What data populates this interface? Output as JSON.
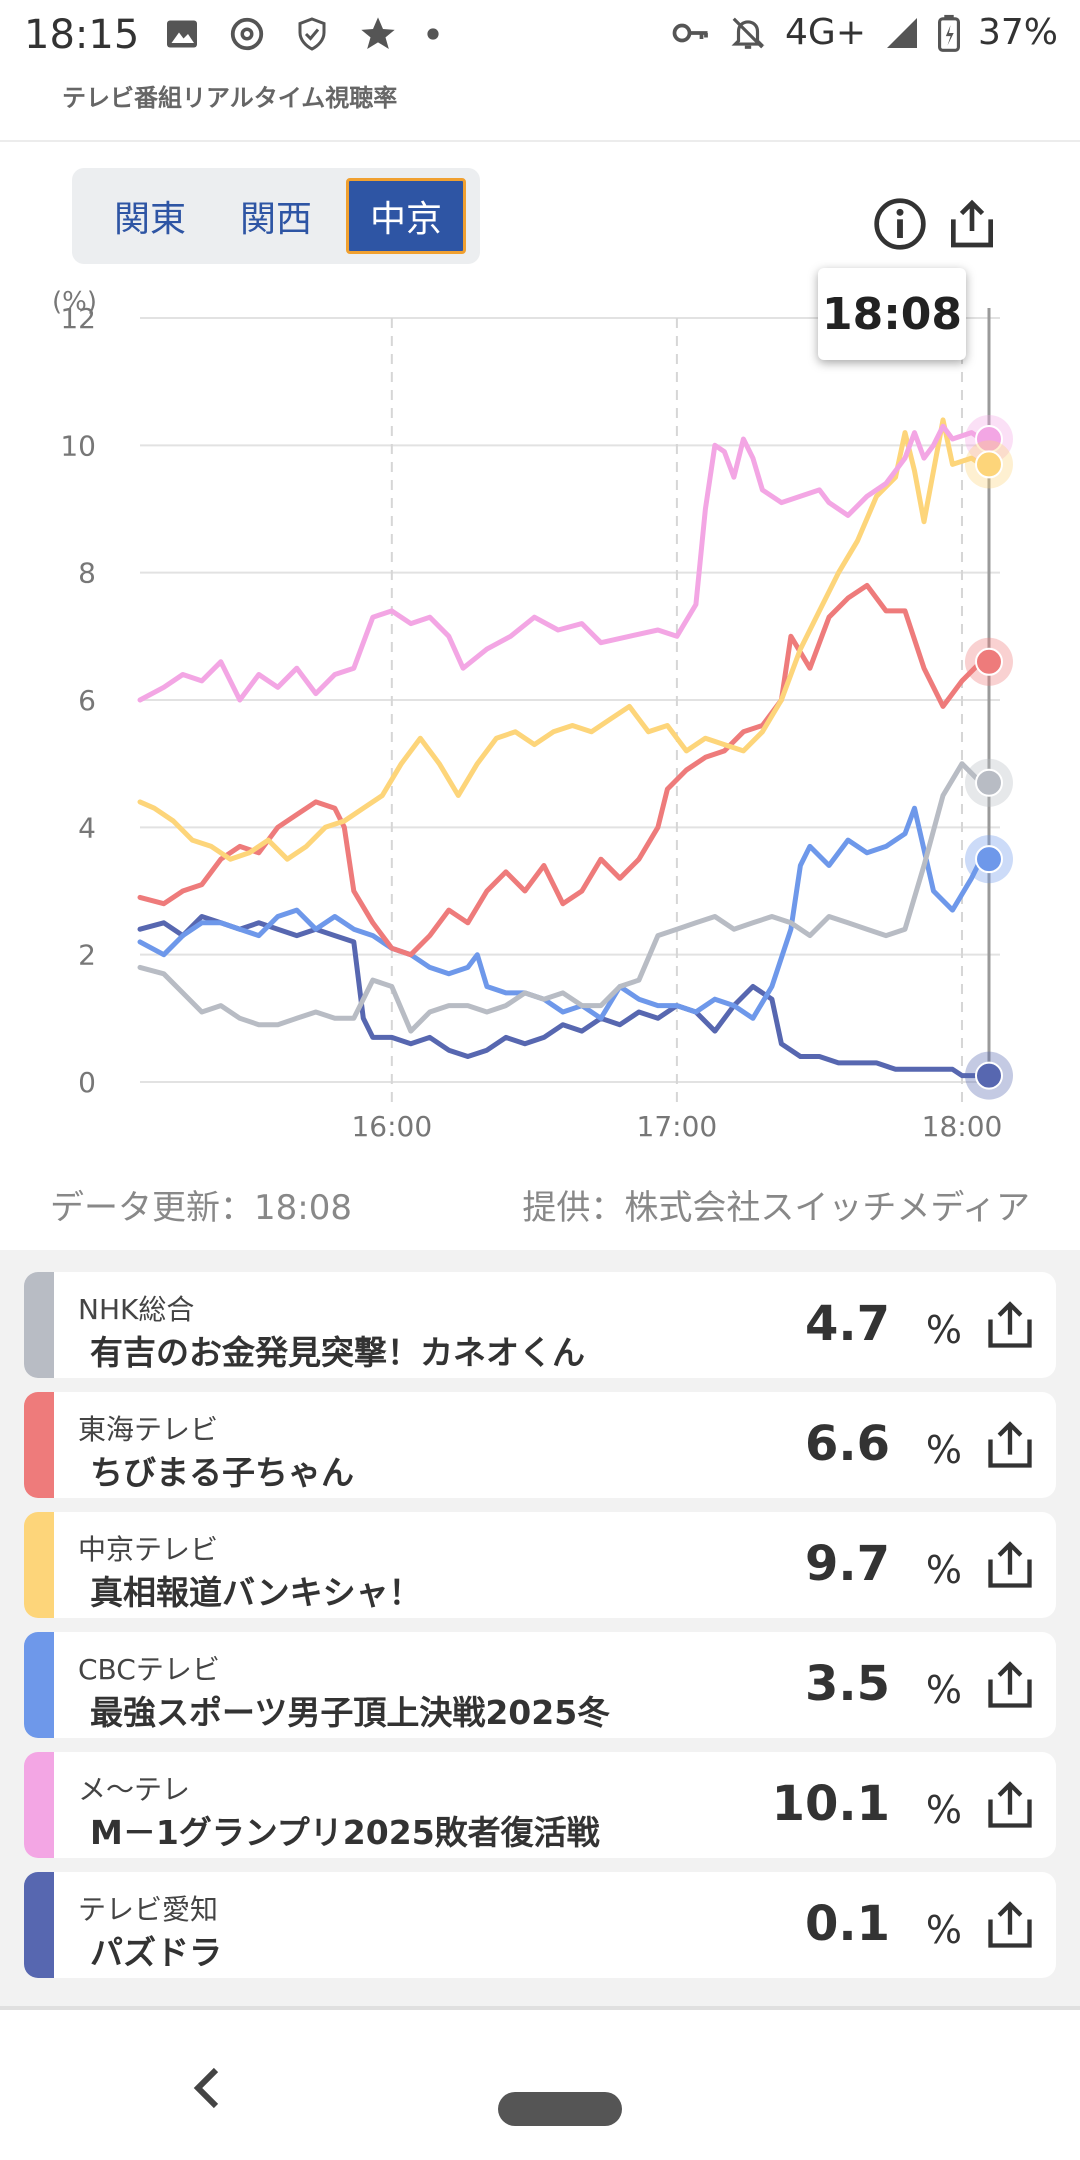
{
  "status_bar": {
    "time": "18:15",
    "network": "4G+",
    "battery": "37%",
    "left_icons": [
      "image-icon",
      "threads-icon",
      "shield-icon",
      "star-icon",
      "dot-icon"
    ],
    "right_icons": [
      "key-icon",
      "bell-off-icon",
      "signal-icon",
      "battery-icon"
    ]
  },
  "header": {
    "title": "テレビ番組リアルタイム視聴率"
  },
  "regions": {
    "tabs": [
      "関東",
      "関西",
      "中京"
    ],
    "active_index": 2
  },
  "toolbar": {
    "info_icon": "info-icon",
    "share_icon": "share-icon"
  },
  "tooltip": {
    "time": "18:08"
  },
  "meta": {
    "updated": "データ更新：18:08",
    "provider": "提供：株式会社スイッチメディア"
  },
  "chart_data": {
    "type": "line",
    "y_unit": "(%)",
    "ylim": [
      0,
      12
    ],
    "yticks": [
      "12",
      "10",
      "8",
      "6",
      "4",
      "2",
      "0"
    ],
    "xticks": [
      "16:00",
      "17:00",
      "18:00"
    ],
    "x_start_minutes": 907,
    "x_end_minutes": 1088,
    "grid": true,
    "series": [
      {
        "name": "メ〜テレ",
        "color": "#f3a6e4",
        "points": [
          [
            907,
            6.0
          ],
          [
            912,
            6.2
          ],
          [
            916,
            6.4
          ],
          [
            920,
            6.3
          ],
          [
            924,
            6.6
          ],
          [
            928,
            6.0
          ],
          [
            932,
            6.4
          ],
          [
            936,
            6.2
          ],
          [
            940,
            6.5
          ],
          [
            944,
            6.1
          ],
          [
            948,
            6.4
          ],
          [
            952,
            6.5
          ],
          [
            956,
            7.3
          ],
          [
            960,
            7.4
          ],
          [
            964,
            7.2
          ],
          [
            968,
            7.3
          ],
          [
            972,
            7.0
          ],
          [
            975,
            6.5
          ],
          [
            980,
            6.8
          ],
          [
            985,
            7.0
          ],
          [
            990,
            7.3
          ],
          [
            995,
            7.1
          ],
          [
            1000,
            7.2
          ],
          [
            1004,
            6.9
          ],
          [
            1010,
            7.0
          ],
          [
            1016,
            7.1
          ],
          [
            1020,
            7.0
          ],
          [
            1024,
            7.5
          ],
          [
            1026,
            9.0
          ],
          [
            1028,
            10.0
          ],
          [
            1030,
            9.9
          ],
          [
            1032,
            9.5
          ],
          [
            1034,
            10.1
          ],
          [
            1036,
            9.8
          ],
          [
            1038,
            9.3
          ],
          [
            1042,
            9.1
          ],
          [
            1046,
            9.2
          ],
          [
            1050,
            9.3
          ],
          [
            1052,
            9.1
          ],
          [
            1056,
            8.9
          ],
          [
            1060,
            9.2
          ],
          [
            1064,
            9.4
          ],
          [
            1068,
            9.8
          ],
          [
            1070,
            10.2
          ],
          [
            1072,
            9.8
          ],
          [
            1074,
            10.0
          ],
          [
            1076,
            10.3
          ],
          [
            1078,
            10.1
          ],
          [
            1082,
            10.2
          ],
          [
            1084,
            10.1
          ]
        ]
      },
      {
        "name": "中京テレビ",
        "color": "#fdd57a",
        "points": [
          [
            907,
            4.4
          ],
          [
            910,
            4.3
          ],
          [
            914,
            4.1
          ],
          [
            918,
            3.8
          ],
          [
            922,
            3.7
          ],
          [
            926,
            3.5
          ],
          [
            930,
            3.6
          ],
          [
            934,
            3.8
          ],
          [
            938,
            3.5
          ],
          [
            942,
            3.7
          ],
          [
            946,
            4.0
          ],
          [
            950,
            4.1
          ],
          [
            954,
            4.3
          ],
          [
            958,
            4.5
          ],
          [
            962,
            5.0
          ],
          [
            966,
            5.4
          ],
          [
            970,
            5.0
          ],
          [
            974,
            4.5
          ],
          [
            978,
            5.0
          ],
          [
            982,
            5.4
          ],
          [
            986,
            5.5
          ],
          [
            990,
            5.3
          ],
          [
            994,
            5.5
          ],
          [
            998,
            5.6
          ],
          [
            1002,
            5.5
          ],
          [
            1006,
            5.7
          ],
          [
            1010,
            5.9
          ],
          [
            1014,
            5.5
          ],
          [
            1018,
            5.6
          ],
          [
            1022,
            5.2
          ],
          [
            1026,
            5.4
          ],
          [
            1030,
            5.3
          ],
          [
            1034,
            5.2
          ],
          [
            1038,
            5.5
          ],
          [
            1042,
            6.0
          ],
          [
            1046,
            6.8
          ],
          [
            1050,
            7.4
          ],
          [
            1054,
            8.0
          ],
          [
            1058,
            8.5
          ],
          [
            1062,
            9.2
          ],
          [
            1066,
            9.5
          ],
          [
            1068,
            10.2
          ],
          [
            1070,
            9.6
          ],
          [
            1072,
            8.8
          ],
          [
            1074,
            9.6
          ],
          [
            1076,
            10.4
          ],
          [
            1078,
            9.7
          ],
          [
            1082,
            9.8
          ],
          [
            1084,
            9.7
          ]
        ]
      },
      {
        "name": "東海テレビ",
        "color": "#ee7b7b",
        "points": [
          [
            907,
            2.9
          ],
          [
            912,
            2.8
          ],
          [
            916,
            3.0
          ],
          [
            920,
            3.1
          ],
          [
            924,
            3.5
          ],
          [
            928,
            3.7
          ],
          [
            932,
            3.6
          ],
          [
            936,
            4.0
          ],
          [
            940,
            4.2
          ],
          [
            944,
            4.4
          ],
          [
            948,
            4.3
          ],
          [
            950,
            4.0
          ],
          [
            952,
            3.0
          ],
          [
            956,
            2.5
          ],
          [
            960,
            2.1
          ],
          [
            964,
            2.0
          ],
          [
            968,
            2.3
          ],
          [
            972,
            2.7
          ],
          [
            976,
            2.5
          ],
          [
            980,
            3.0
          ],
          [
            984,
            3.3
          ],
          [
            988,
            3.0
          ],
          [
            992,
            3.4
          ],
          [
            996,
            2.8
          ],
          [
            1000,
            3.0
          ],
          [
            1004,
            3.5
          ],
          [
            1008,
            3.2
          ],
          [
            1012,
            3.5
          ],
          [
            1016,
            4.0
          ],
          [
            1018,
            4.6
          ],
          [
            1022,
            4.9
          ],
          [
            1026,
            5.1
          ],
          [
            1030,
            5.2
          ],
          [
            1034,
            5.5
          ],
          [
            1038,
            5.6
          ],
          [
            1042,
            6.0
          ],
          [
            1044,
            7.0
          ],
          [
            1048,
            6.5
          ],
          [
            1052,
            7.3
          ],
          [
            1056,
            7.6
          ],
          [
            1060,
            7.8
          ],
          [
            1064,
            7.4
          ],
          [
            1068,
            7.4
          ],
          [
            1072,
            6.5
          ],
          [
            1076,
            5.9
          ],
          [
            1080,
            6.3
          ],
          [
            1084,
            6.6
          ]
        ]
      },
      {
        "name": "NHK総合",
        "color": "#b8bcc4",
        "points": [
          [
            907,
            1.8
          ],
          [
            912,
            1.7
          ],
          [
            916,
            1.4
          ],
          [
            920,
            1.1
          ],
          [
            924,
            1.2
          ],
          [
            928,
            1.0
          ],
          [
            932,
            0.9
          ],
          [
            936,
            0.9
          ],
          [
            940,
            1.0
          ],
          [
            944,
            1.1
          ],
          [
            948,
            1.0
          ],
          [
            952,
            1.0
          ],
          [
            956,
            1.6
          ],
          [
            960,
            1.5
          ],
          [
            964,
            0.8
          ],
          [
            968,
            1.1
          ],
          [
            972,
            1.2
          ],
          [
            976,
            1.2
          ],
          [
            980,
            1.1
          ],
          [
            984,
            1.2
          ],
          [
            988,
            1.4
          ],
          [
            992,
            1.3
          ],
          [
            996,
            1.4
          ],
          [
            1000,
            1.2
          ],
          [
            1004,
            1.2
          ],
          [
            1008,
            1.5
          ],
          [
            1012,
            1.6
          ],
          [
            1016,
            2.3
          ],
          [
            1020,
            2.4
          ],
          [
            1024,
            2.5
          ],
          [
            1028,
            2.6
          ],
          [
            1032,
            2.4
          ],
          [
            1036,
            2.5
          ],
          [
            1040,
            2.6
          ],
          [
            1044,
            2.5
          ],
          [
            1048,
            2.3
          ],
          [
            1052,
            2.6
          ],
          [
            1056,
            2.5
          ],
          [
            1060,
            2.4
          ],
          [
            1064,
            2.3
          ],
          [
            1068,
            2.4
          ],
          [
            1072,
            3.4
          ],
          [
            1076,
            4.5
          ],
          [
            1080,
            5.0
          ],
          [
            1084,
            4.7
          ]
        ]
      },
      {
        "name": "CBCテレビ",
        "color": "#6e98ea",
        "points": [
          [
            907,
            2.2
          ],
          [
            912,
            2.0
          ],
          [
            916,
            2.3
          ],
          [
            920,
            2.5
          ],
          [
            924,
            2.5
          ],
          [
            928,
            2.4
          ],
          [
            932,
            2.3
          ],
          [
            936,
            2.6
          ],
          [
            940,
            2.7
          ],
          [
            944,
            2.4
          ],
          [
            948,
            2.6
          ],
          [
            952,
            2.4
          ],
          [
            956,
            2.3
          ],
          [
            960,
            2.1
          ],
          [
            964,
            2.0
          ],
          [
            968,
            1.8
          ],
          [
            972,
            1.7
          ],
          [
            976,
            1.8
          ],
          [
            978,
            2.0
          ],
          [
            980,
            1.5
          ],
          [
            984,
            1.4
          ],
          [
            988,
            1.4
          ],
          [
            992,
            1.3
          ],
          [
            996,
            1.1
          ],
          [
            1000,
            1.2
          ],
          [
            1004,
            1.0
          ],
          [
            1008,
            1.5
          ],
          [
            1012,
            1.3
          ],
          [
            1016,
            1.2
          ],
          [
            1020,
            1.2
          ],
          [
            1024,
            1.1
          ],
          [
            1028,
            1.3
          ],
          [
            1032,
            1.2
          ],
          [
            1036,
            1.0
          ],
          [
            1040,
            1.5
          ],
          [
            1044,
            2.4
          ],
          [
            1046,
            3.4
          ],
          [
            1048,
            3.7
          ],
          [
            1052,
            3.4
          ],
          [
            1056,
            3.8
          ],
          [
            1060,
            3.6
          ],
          [
            1064,
            3.7
          ],
          [
            1068,
            3.9
          ],
          [
            1070,
            4.3
          ],
          [
            1074,
            3.0
          ],
          [
            1078,
            2.7
          ],
          [
            1082,
            3.2
          ],
          [
            1084,
            3.5
          ]
        ]
      },
      {
        "name": "テレビ愛知",
        "color": "#5767b0",
        "points": [
          [
            907,
            2.4
          ],
          [
            912,
            2.5
          ],
          [
            916,
            2.3
          ],
          [
            920,
            2.6
          ],
          [
            924,
            2.5
          ],
          [
            928,
            2.4
          ],
          [
            932,
            2.5
          ],
          [
            936,
            2.4
          ],
          [
            940,
            2.3
          ],
          [
            944,
            2.4
          ],
          [
            948,
            2.3
          ],
          [
            952,
            2.2
          ],
          [
            954,
            1.0
          ],
          [
            956,
            0.7
          ],
          [
            960,
            0.7
          ],
          [
            964,
            0.6
          ],
          [
            968,
            0.7
          ],
          [
            972,
            0.5
          ],
          [
            976,
            0.4
          ],
          [
            980,
            0.5
          ],
          [
            984,
            0.7
          ],
          [
            988,
            0.6
          ],
          [
            992,
            0.7
          ],
          [
            996,
            0.9
          ],
          [
            1000,
            0.8
          ],
          [
            1004,
            1.0
          ],
          [
            1008,
            0.9
          ],
          [
            1012,
            1.1
          ],
          [
            1016,
            1.0
          ],
          [
            1020,
            1.2
          ],
          [
            1024,
            1.1
          ],
          [
            1028,
            0.8
          ],
          [
            1032,
            1.2
          ],
          [
            1036,
            1.5
          ],
          [
            1040,
            1.3
          ],
          [
            1042,
            0.6
          ],
          [
            1046,
            0.4
          ],
          [
            1050,
            0.4
          ],
          [
            1054,
            0.3
          ],
          [
            1058,
            0.3
          ],
          [
            1062,
            0.3
          ],
          [
            1066,
            0.2
          ],
          [
            1070,
            0.2
          ],
          [
            1074,
            0.2
          ],
          [
            1078,
            0.2
          ],
          [
            1080,
            0.1
          ],
          [
            1084,
            0.1
          ]
        ]
      }
    ],
    "marker_values": [
      {
        "name": "メ〜テレ",
        "value": 10.1,
        "color": "#f3a6e4"
      },
      {
        "name": "中京テレビ",
        "value": 9.7,
        "color": "#fdd57a"
      },
      {
        "name": "東海テレビ",
        "value": 6.6,
        "color": "#ee7b7b"
      },
      {
        "name": "NHK総合",
        "value": 4.7,
        "color": "#b8bcc4"
      },
      {
        "name": "CBCテレビ",
        "value": 3.5,
        "color": "#6e98ea"
      },
      {
        "name": "テレビ愛知",
        "value": 0.1,
        "color": "#5767b0"
      }
    ]
  },
  "channels": [
    {
      "channel": "NHK総合",
      "program": "有吉のお金発見突撃！カネオくん",
      "rating": "4.7",
      "unit": "%",
      "color": "#b8bcc4"
    },
    {
      "channel": "東海テレビ",
      "program": "ちびまる子ちゃん",
      "rating": "6.6",
      "unit": "%",
      "color": "#ee7b7b"
    },
    {
      "channel": "中京テレビ",
      "program": "真相報道バンキシャ！",
      "rating": "9.7",
      "unit": "%",
      "color": "#fdd57a"
    },
    {
      "channel": "CBCテレビ",
      "program": "最強スポーツ男子頂上決戦2025冬",
      "rating": "3.5",
      "unit": "%",
      "color": "#6e98ea"
    },
    {
      "channel": "メ〜テレ",
      "program": "M－1グランプリ2025敗者復活戦",
      "rating": "10.1",
      "unit": "%",
      "color": "#f3a6e4"
    },
    {
      "channel": "テレビ愛知",
      "program": "パズドラ",
      "rating": "0.1",
      "unit": "%",
      "color": "#5767b0"
    }
  ],
  "nav": {
    "back_icon": "back-chevron-icon",
    "home_icon": "home-pill-icon"
  }
}
